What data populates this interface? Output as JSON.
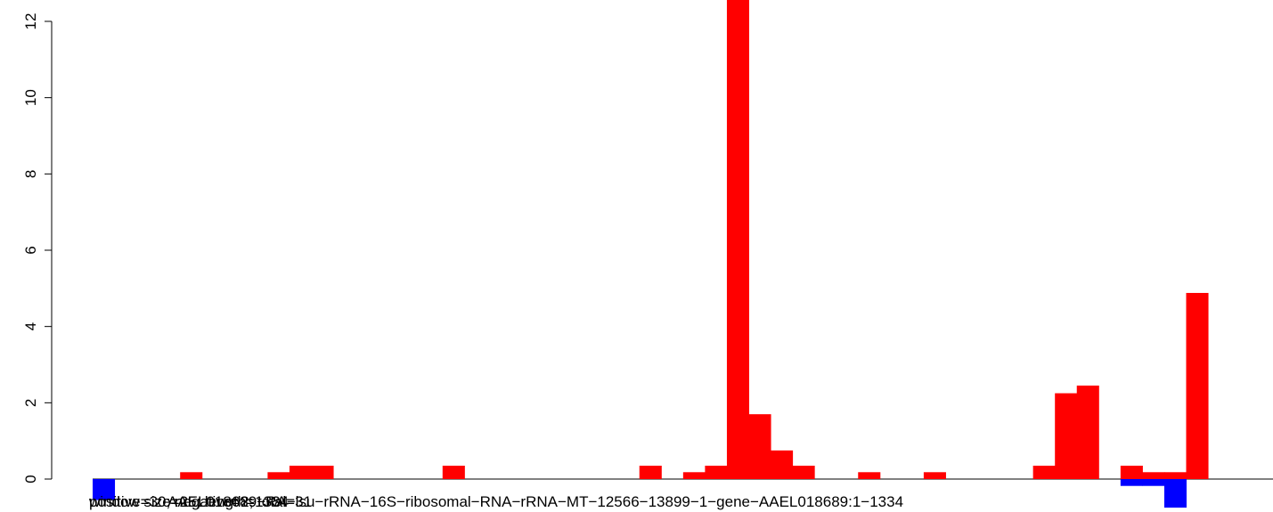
{
  "chart_data": {
    "type": "bar",
    "x_labels": [
      "window size=25; length=1334",
      "positive=30; negative=2; total=31",
      "AAEL018689−RA−lsu−rRNA−16S−ribosomal−RNA−rRNA−MT−12566−13899−1−gene−AAEL018689:1−1334"
    ],
    "ylim": [
      0,
      12
    ],
    "yticks": [
      0,
      2,
      4,
      6,
      8,
      10,
      12
    ],
    "series": [
      {
        "color": "#0000ff",
        "values": [
          -0.55,
          null,
          null,
          null,
          null,
          null,
          null,
          null,
          null,
          null,
          null,
          null,
          null,
          null,
          null,
          null,
          null,
          null,
          null,
          null,
          null,
          null,
          null,
          null,
          null,
          null,
          null,
          null,
          null,
          null,
          null,
          null,
          null,
          null,
          null,
          null,
          null,
          null,
          null,
          null,
          null,
          null,
          null,
          null,
          null,
          null,
          null,
          -0.18,
          -0.18,
          -0.75,
          null
        ]
      },
      {
        "color": "#ff0000",
        "values": [
          null,
          null,
          null,
          null,
          0.18,
          null,
          null,
          null,
          0.18,
          0.35,
          0.35,
          null,
          null,
          null,
          null,
          null,
          0.35,
          null,
          null,
          null,
          null,
          null,
          null,
          null,
          null,
          0.35,
          null,
          0.18,
          0.35,
          13,
          1.7,
          0.75,
          0.35,
          null,
          null,
          0.18,
          null,
          null,
          0.18,
          null,
          null,
          null,
          null,
          0.35,
          2.25,
          2.45,
          null,
          0.35,
          0.18,
          0.18,
          4.88
        ]
      }
    ]
  }
}
